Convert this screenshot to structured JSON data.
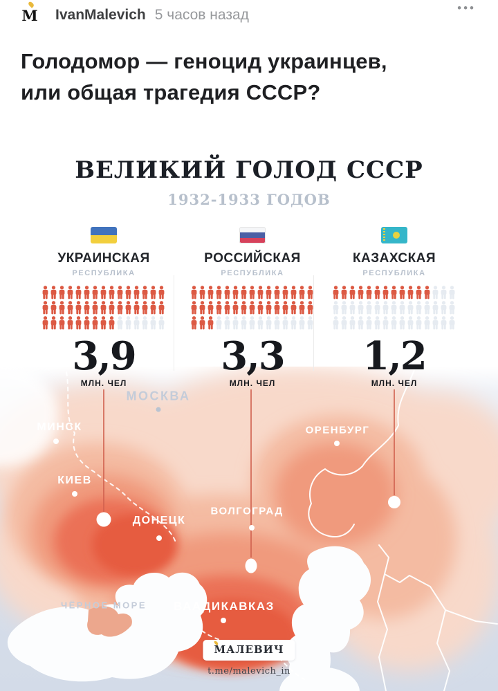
{
  "header": {
    "avatar_letter": "М",
    "username": "IvanMalevich",
    "timestamp": "5 часов назад",
    "menu": "•••"
  },
  "post": {
    "title_line1": "Голодомор — геноцид украинцев,",
    "title_line2": "или общая трагедия СССР?"
  },
  "infographic": {
    "title": "ВЕЛИКИЙ ГОЛОД СССР",
    "subtitle": "1932-1933 ГОДОВ",
    "unit_label": "МЛН. ЧЕЛ",
    "icon_red": "#dc5a44",
    "icon_gray": "#e6ebf1",
    "columns": [
      {
        "name": "УКРАИНСКАЯ",
        "sub": "РЕСПУБЛИКА",
        "value": "3,9",
        "value_num": 3.9,
        "icons_total": 45,
        "icons_filled": 39,
        "flag": "ukraine-flag"
      },
      {
        "name": "РОССИЙСКАЯ",
        "sub": "РЕСПУБЛИКА",
        "value": "3,3",
        "value_num": 3.3,
        "icons_total": 45,
        "icons_filled": 33,
        "flag": "russia-flag"
      },
      {
        "name": "КАЗАХСКАЯ",
        "sub": "РЕСПУБЛИКА",
        "value": "1,2",
        "value_num": 1.2,
        "icons_total": 45,
        "icons_filled": 12,
        "flag": "kazakhstan-flag"
      }
    ],
    "map": {
      "cities": [
        {
          "name": "МОСКВА",
          "muted": true
        },
        {
          "name": "МИНСК",
          "muted": false
        },
        {
          "name": "КИЕВ",
          "muted": false
        },
        {
          "name": "ОРЕНБУРГ",
          "muted": false
        },
        {
          "name": "ДОНЕЦК",
          "muted": false
        },
        {
          "name": "ВОЛГОГРАД",
          "muted": false
        },
        {
          "name": "ВААДИКАВКАЗ",
          "muted": false
        }
      ],
      "sea_label": "ЧЁРНОЕ МОРЕ"
    },
    "footer": {
      "brand": "МАЛЕВИЧ",
      "link": "t.me/malevich_in"
    }
  },
  "chart_data": {
    "type": "pictogram",
    "title": "ВЕЛИКИЙ ГОЛОД СССР 1932-1933 ГОДОВ",
    "categories": [
      "УКРАИНСКАЯ РЕСПУБЛИКА",
      "РОССИЙСКАЯ РЕСПУБЛИКА",
      "КАЗАХСКАЯ РЕСПУБЛИКА"
    ],
    "values": [
      3.9,
      3.3,
      1.2
    ],
    "unit": "МЛН. ЧЕЛ",
    "icons_per_row": 15,
    "rows_per_category": 3,
    "filled_icons": [
      39,
      33,
      12
    ],
    "total_icons_per_category": 45
  }
}
